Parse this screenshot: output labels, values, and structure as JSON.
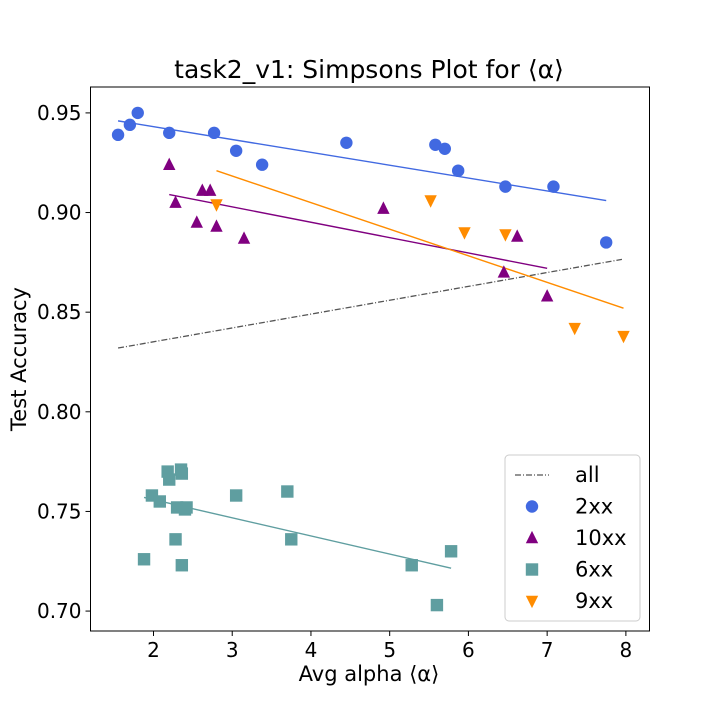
{
  "chart_data": {
    "type": "scatter",
    "title": "task2_v1: Simpsons Plot for ⟨α⟩",
    "xlabel": "Avg alpha ⟨α⟩",
    "ylabel": "Test Accuracy",
    "xlim": [
      1.2,
      8.3
    ],
    "ylim": [
      0.69,
      0.963
    ],
    "xticks": [
      "2",
      "3",
      "4",
      "5",
      "6",
      "7",
      "8"
    ],
    "yticks": [
      "0.70",
      "0.75",
      "0.80",
      "0.85",
      "0.90",
      "0.95"
    ],
    "grid": false,
    "legend_position": "lower-right",
    "overall_fit": {
      "name": "all",
      "color": "#555555",
      "x": [
        1.55,
        7.95
      ],
      "y": [
        0.832,
        0.8765
      ]
    },
    "series": [
      {
        "name": "2xx",
        "marker": "circle",
        "color": "#4169E1",
        "points": [
          [
            1.55,
            0.939
          ],
          [
            1.7,
            0.944
          ],
          [
            1.8,
            0.95
          ],
          [
            2.2,
            0.94
          ],
          [
            2.77,
            0.94
          ],
          [
            3.05,
            0.931
          ],
          [
            3.38,
            0.924
          ],
          [
            4.45,
            0.935
          ],
          [
            5.58,
            0.934
          ],
          [
            5.7,
            0.932
          ],
          [
            5.87,
            0.921
          ],
          [
            6.47,
            0.913
          ],
          [
            7.08,
            0.913
          ],
          [
            7.75,
            0.885
          ]
        ],
        "fit": {
          "x": [
            1.55,
            7.75
          ],
          "y": [
            0.946,
            0.906
          ]
        }
      },
      {
        "name": "10xx",
        "marker": "triangle-up",
        "color": "#800080",
        "points": [
          [
            2.2,
            0.924
          ],
          [
            2.28,
            0.905
          ],
          [
            2.55,
            0.895
          ],
          [
            2.62,
            0.911
          ],
          [
            2.72,
            0.911
          ],
          [
            2.8,
            0.893
          ],
          [
            3.15,
            0.887
          ],
          [
            4.92,
            0.902
          ],
          [
            6.45,
            0.87
          ],
          [
            6.62,
            0.888
          ],
          [
            7.0,
            0.858
          ]
        ],
        "fit": {
          "x": [
            2.2,
            7.0
          ],
          "y": [
            0.909,
            0.872
          ]
        }
      },
      {
        "name": "6xx",
        "marker": "square",
        "color": "#5F9EA0",
        "points": [
          [
            1.88,
            0.726
          ],
          [
            1.98,
            0.758
          ],
          [
            2.08,
            0.755
          ],
          [
            2.18,
            0.77
          ],
          [
            2.2,
            0.766
          ],
          [
            2.28,
            0.736
          ],
          [
            2.3,
            0.752
          ],
          [
            2.35,
            0.771
          ],
          [
            2.36,
            0.769
          ],
          [
            2.36,
            0.723
          ],
          [
            2.4,
            0.751
          ],
          [
            2.42,
            0.752
          ],
          [
            3.05,
            0.758
          ],
          [
            3.7,
            0.76
          ],
          [
            3.75,
            0.736
          ],
          [
            5.28,
            0.723
          ],
          [
            5.6,
            0.703
          ],
          [
            5.78,
            0.73
          ]
        ],
        "fit": {
          "x": [
            1.88,
            5.78
          ],
          "y": [
            0.757,
            0.7215
          ]
        }
      },
      {
        "name": "9xx",
        "marker": "triangle-down",
        "color": "#FF8C00",
        "points": [
          [
            2.8,
            0.904
          ],
          [
            5.52,
            0.906
          ],
          [
            5.95,
            0.89
          ],
          [
            6.47,
            0.889
          ],
          [
            7.35,
            0.842
          ],
          [
            7.97,
            0.838
          ]
        ],
        "fit": {
          "x": [
            2.8,
            7.97
          ],
          "y": [
            0.921,
            0.852
          ]
        }
      }
    ]
  }
}
